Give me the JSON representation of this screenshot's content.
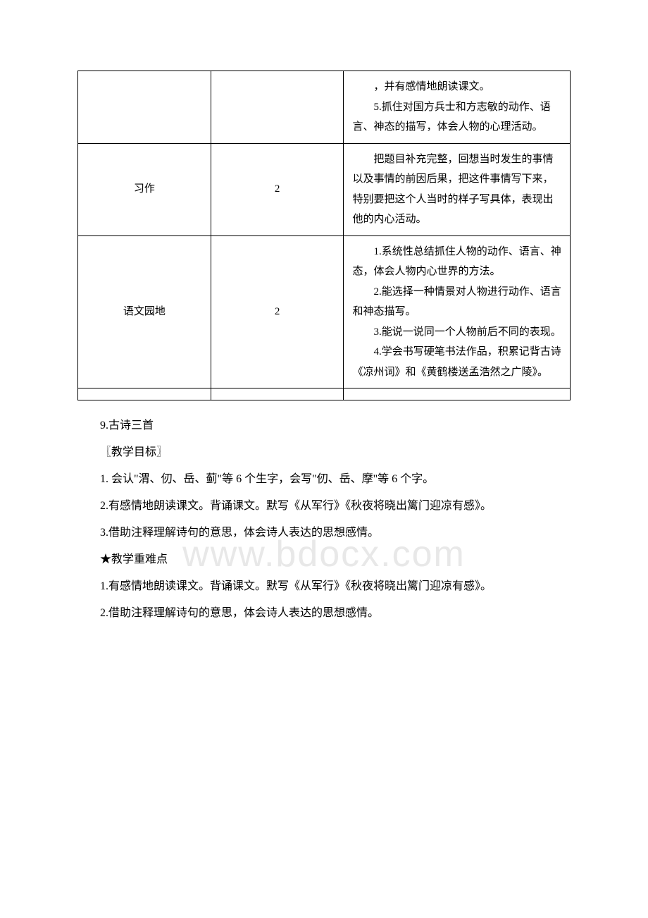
{
  "watermark": "www.bdocx.com",
  "table": {
    "rows": [
      {
        "col1": "",
        "col2": "",
        "items": [
          "，并有感情地朗读课文。",
          "5.抓住对国方兵士和方志敏的动作、语言、神态的描写，体会人物的心理活动。"
        ]
      },
      {
        "col1": "习作",
        "col2": "2",
        "items": [
          "把题目补充完整，回想当时发生的事情以及事情的前因后果，把这件事情写下来，特别要把这个人当时的样子写具体，表现出他的内心活动。"
        ]
      },
      {
        "col1": "语文园地",
        "col2": "2",
        "items": [
          "1.系统性总结抓住人物的动作、语言、神态，体会人物内心世界的方法。",
          "2.能选择一种情景对人物进行动作、语言和神态描写。",
          "3.能说一说同一个人物前后不同的表现。",
          "4.学会书写硬笔书法作品，积累记背古诗《凉州词》和《黄鹤楼送孟浩然之广陵》。"
        ]
      },
      {
        "col1": "",
        "col2": "",
        "items": []
      }
    ]
  },
  "body": {
    "lines": [
      "9.古诗三首",
      "〖教学目标〗",
      "1. 会认\"渭、仞、岳、蓟\"等 6 个生字，会写\"仞、岳、摩\"等 6 个字。",
      "2.有感情地朗读课文。背诵课文。默写《从军行》《秋夜将晓出篱门迎凉有感》。",
      "3.借助注释理解诗句的意思，体会诗人表达的思想感情。",
      "★教学重难点",
      "1.有感情地朗读课文。背诵课文。默写《从军行》《秋夜将晓出篱门迎凉有感》。",
      "2.借助注释理解诗句的意思，体会诗人表达的思想感情。"
    ]
  }
}
